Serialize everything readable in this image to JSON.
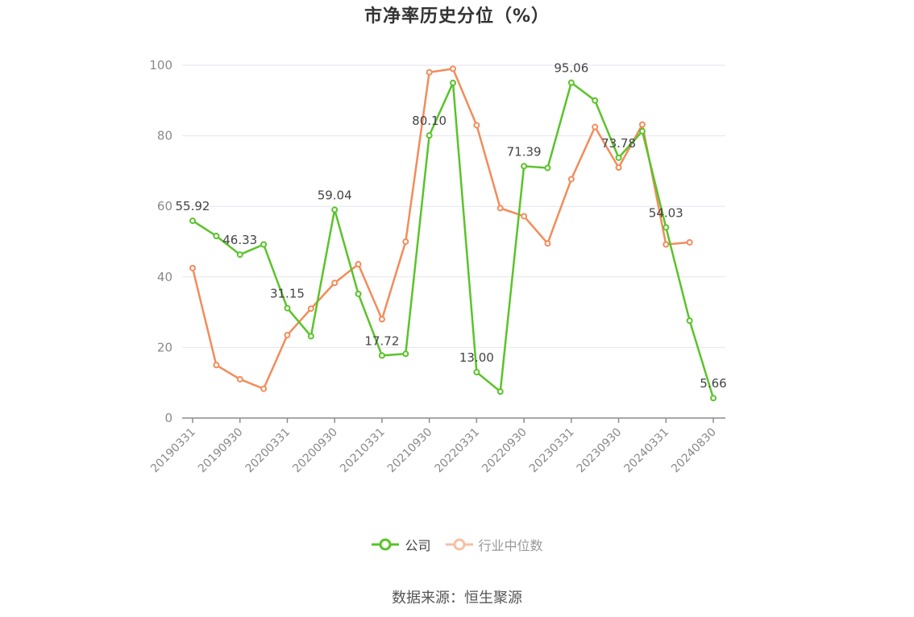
{
  "chart_data": {
    "type": "line",
    "title": "市净率历史分位（%）",
    "ylim": [
      0,
      100
    ],
    "yticks": [
      "0",
      "20",
      "40",
      "60",
      "80",
      "100"
    ],
    "grid": true,
    "legend_position": "bottom-center",
    "x": [
      "20190331",
      "20190630",
      "20190930",
      "20191231",
      "20200331",
      "20200630",
      "20200930",
      "20201231",
      "20210331",
      "20210630",
      "20210930",
      "20211231",
      "20220331",
      "20220630",
      "20220930",
      "20221231",
      "20230331",
      "20230630",
      "20230930",
      "20231231",
      "20240331",
      "20240630",
      "20240830"
    ],
    "xtick_labels": [
      "20190331",
      "20190930",
      "20200331",
      "20200930",
      "20210331",
      "20210930",
      "20220331",
      "20220930",
      "20230331",
      "20230930",
      "20240331",
      "20240830"
    ],
    "series": [
      {
        "name": "公司",
        "color": "#5ac32a",
        "values": [
          55.92,
          51.6,
          46.33,
          49.2,
          31.15,
          23.2,
          59.04,
          35.2,
          17.72,
          18.2,
          80.1,
          95.0,
          13.0,
          7.5,
          71.39,
          70.9,
          95.06,
          90.0,
          73.78,
          81.3,
          54.03,
          27.6,
          5.66
        ],
        "data_labels": [
          {
            "index": 0,
            "text": "55.92"
          },
          {
            "index": 2,
            "text": "46.33"
          },
          {
            "index": 4,
            "text": "31.15"
          },
          {
            "index": 6,
            "text": "59.04"
          },
          {
            "index": 8,
            "text": "17.72"
          },
          {
            "index": 10,
            "text": "80.10"
          },
          {
            "index": 12,
            "text": "13.00"
          },
          {
            "index": 14,
            "text": "71.39"
          },
          {
            "index": 16,
            "text": "95.06"
          },
          {
            "index": 18,
            "text": "73.78"
          },
          {
            "index": 20,
            "text": "54.03"
          },
          {
            "index": 22,
            "text": "5.66"
          }
        ]
      },
      {
        "name": "行业中位数",
        "color": "#f28c5a",
        "values": [
          42.5,
          15.0,
          11.0,
          8.3,
          23.5,
          31.0,
          38.3,
          43.6,
          28.0,
          50.0,
          98.0,
          99.0,
          83.0,
          59.5,
          57.2,
          49.5,
          67.7,
          82.5,
          71.0,
          83.2,
          49.2,
          49.8,
          null
        ]
      }
    ]
  },
  "source": "数据来源：恒生聚源"
}
